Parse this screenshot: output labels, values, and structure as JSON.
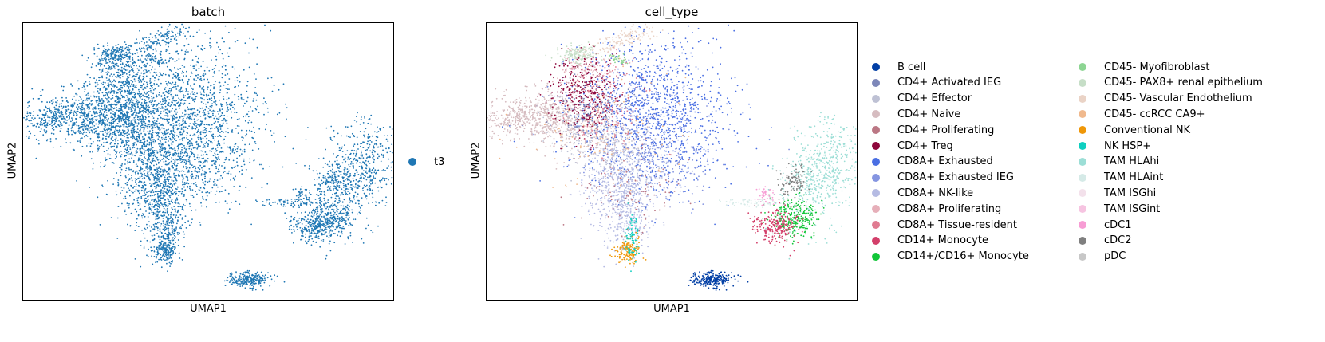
{
  "chart_data": [
    {
      "type": "scatter",
      "title": "batch",
      "xlabel": "UMAP1",
      "ylabel": "UMAP2",
      "grid": false,
      "legend_placement": "right",
      "series": [
        {
          "name": "t3",
          "color": "#1f77b4"
        }
      ]
    },
    {
      "type": "scatter",
      "title": "cell_type",
      "xlabel": "UMAP1",
      "ylabel": "UMAP2",
      "grid": false,
      "legend_placement": "right",
      "series": [
        {
          "name": "B cell",
          "color": "#023fa5"
        },
        {
          "name": "CD4+ Activated IEG",
          "color": "#7d87b9"
        },
        {
          "name": "CD4+ Effector",
          "color": "#bec1d4"
        },
        {
          "name": "CD4+ Naive",
          "color": "#d6bcc0"
        },
        {
          "name": "CD4+ Proliferating",
          "color": "#bb7784"
        },
        {
          "name": "CD4+ Treg",
          "color": "#8e063b"
        },
        {
          "name": "CD8A+ Exhausted",
          "color": "#4a6fe3"
        },
        {
          "name": "CD8A+ Exhausted IEG",
          "color": "#8595e1"
        },
        {
          "name": "CD8A+ NK-like",
          "color": "#b5bbe3"
        },
        {
          "name": "CD8A+ Proliferating",
          "color": "#e6afb9"
        },
        {
          "name": "CD8A+ Tissue-resident",
          "color": "#e07b91"
        },
        {
          "name": "CD14+ Monocyte",
          "color": "#d33f6a"
        },
        {
          "name": "CD14+/CD16+ Monocyte",
          "color": "#11c638"
        },
        {
          "name": "CD45- Myofibroblast",
          "color": "#8dd593"
        },
        {
          "name": "CD45- PAX8+ renal epithelium",
          "color": "#c6dec7"
        },
        {
          "name": "CD45- Vascular Endothelium",
          "color": "#ead3c6"
        },
        {
          "name": "CD45- ccRCC CA9+",
          "color": "#f0b98d"
        },
        {
          "name": "Conventional NK",
          "color": "#ef9708"
        },
        {
          "name": "NK HSP+",
          "color": "#0fcfc0"
        },
        {
          "name": "TAM HLAhi",
          "color": "#9cded6"
        },
        {
          "name": "TAM HLAint",
          "color": "#d5eae7"
        },
        {
          "name": "TAM ISGhi",
          "color": "#f3e1eb"
        },
        {
          "name": "TAM ISGint",
          "color": "#f6c4e1"
        },
        {
          "name": "cDC1",
          "color": "#f79cd4"
        },
        {
          "name": "cDC2",
          "color": "#7f7f7f"
        },
        {
          "name": "pDC",
          "color": "#c7c7c7"
        }
      ]
    }
  ]
}
